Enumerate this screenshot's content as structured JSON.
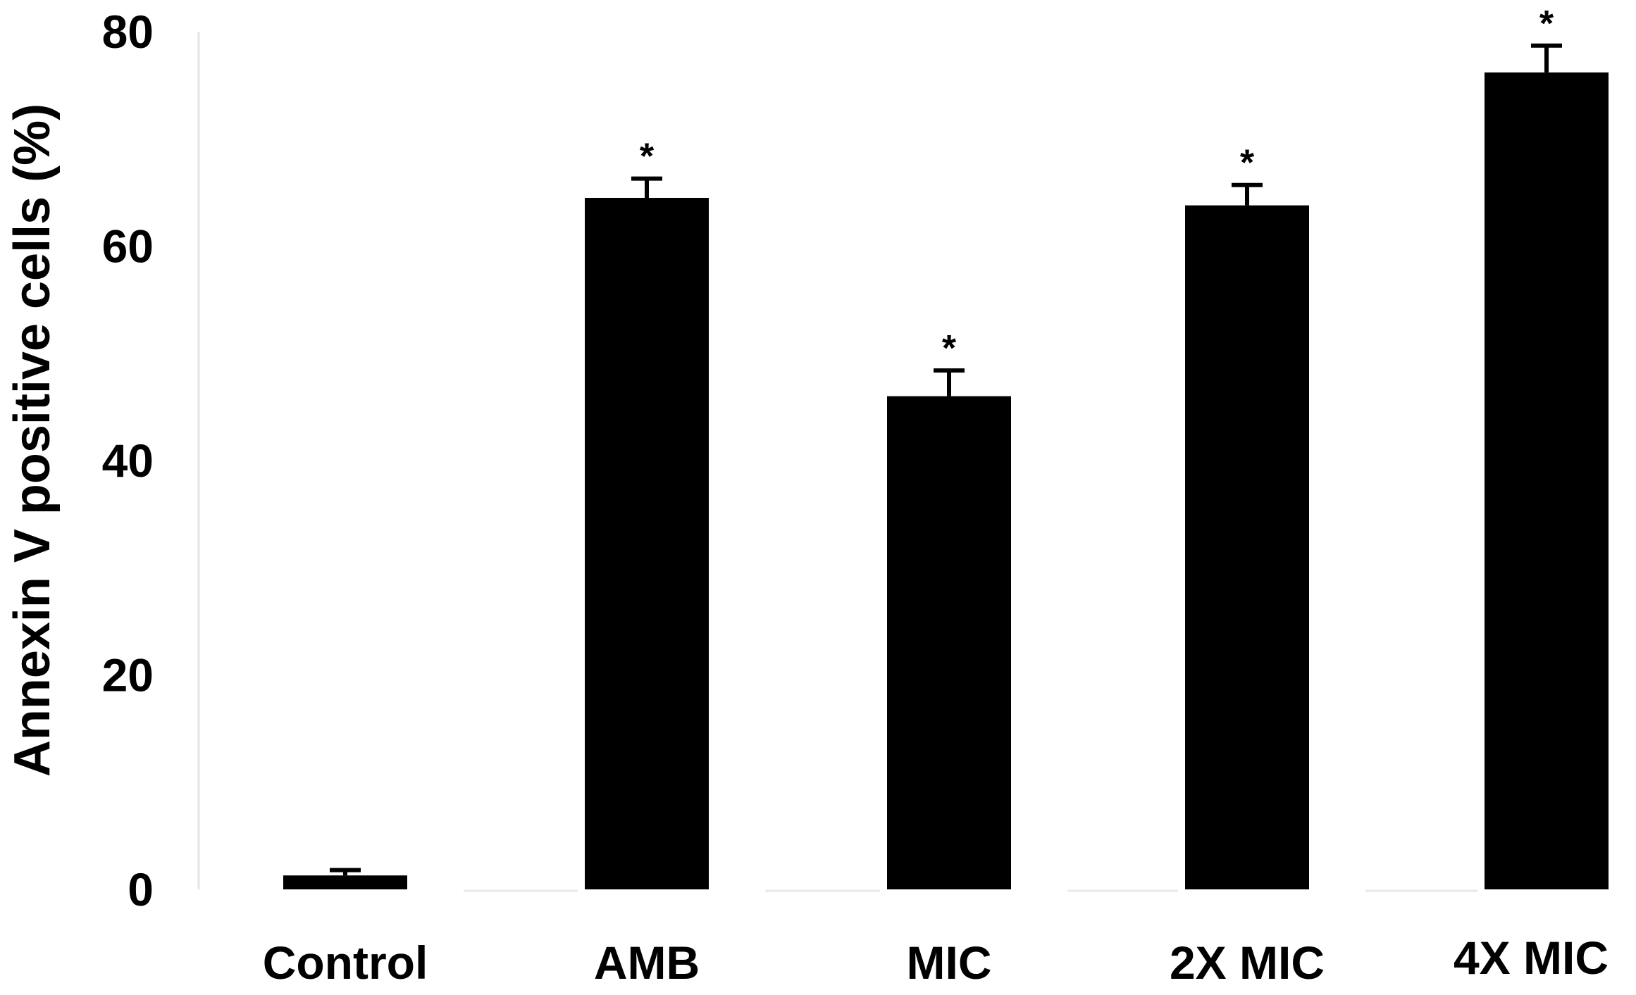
{
  "chart_data": {
    "type": "bar",
    "title": "",
    "xlabel": "",
    "ylabel": "Annexin V positive cells (%)",
    "categories": [
      "Control",
      "AMB",
      "MIC",
      "2X MIC",
      "4X MIC"
    ],
    "values": [
      1.3,
      64.5,
      46,
      63.8,
      76.2
    ],
    "error": [
      0.5,
      1.8,
      2.4,
      1.9,
      2.5
    ],
    "significance": [
      "",
      "*",
      "*",
      "*",
      "*"
    ],
    "ylim": [
      0,
      80
    ],
    "yticks": [
      "0",
      "20",
      "40",
      "60",
      "80"
    ],
    "grid": false,
    "legend": "none",
    "bar_color": "#000000"
  }
}
